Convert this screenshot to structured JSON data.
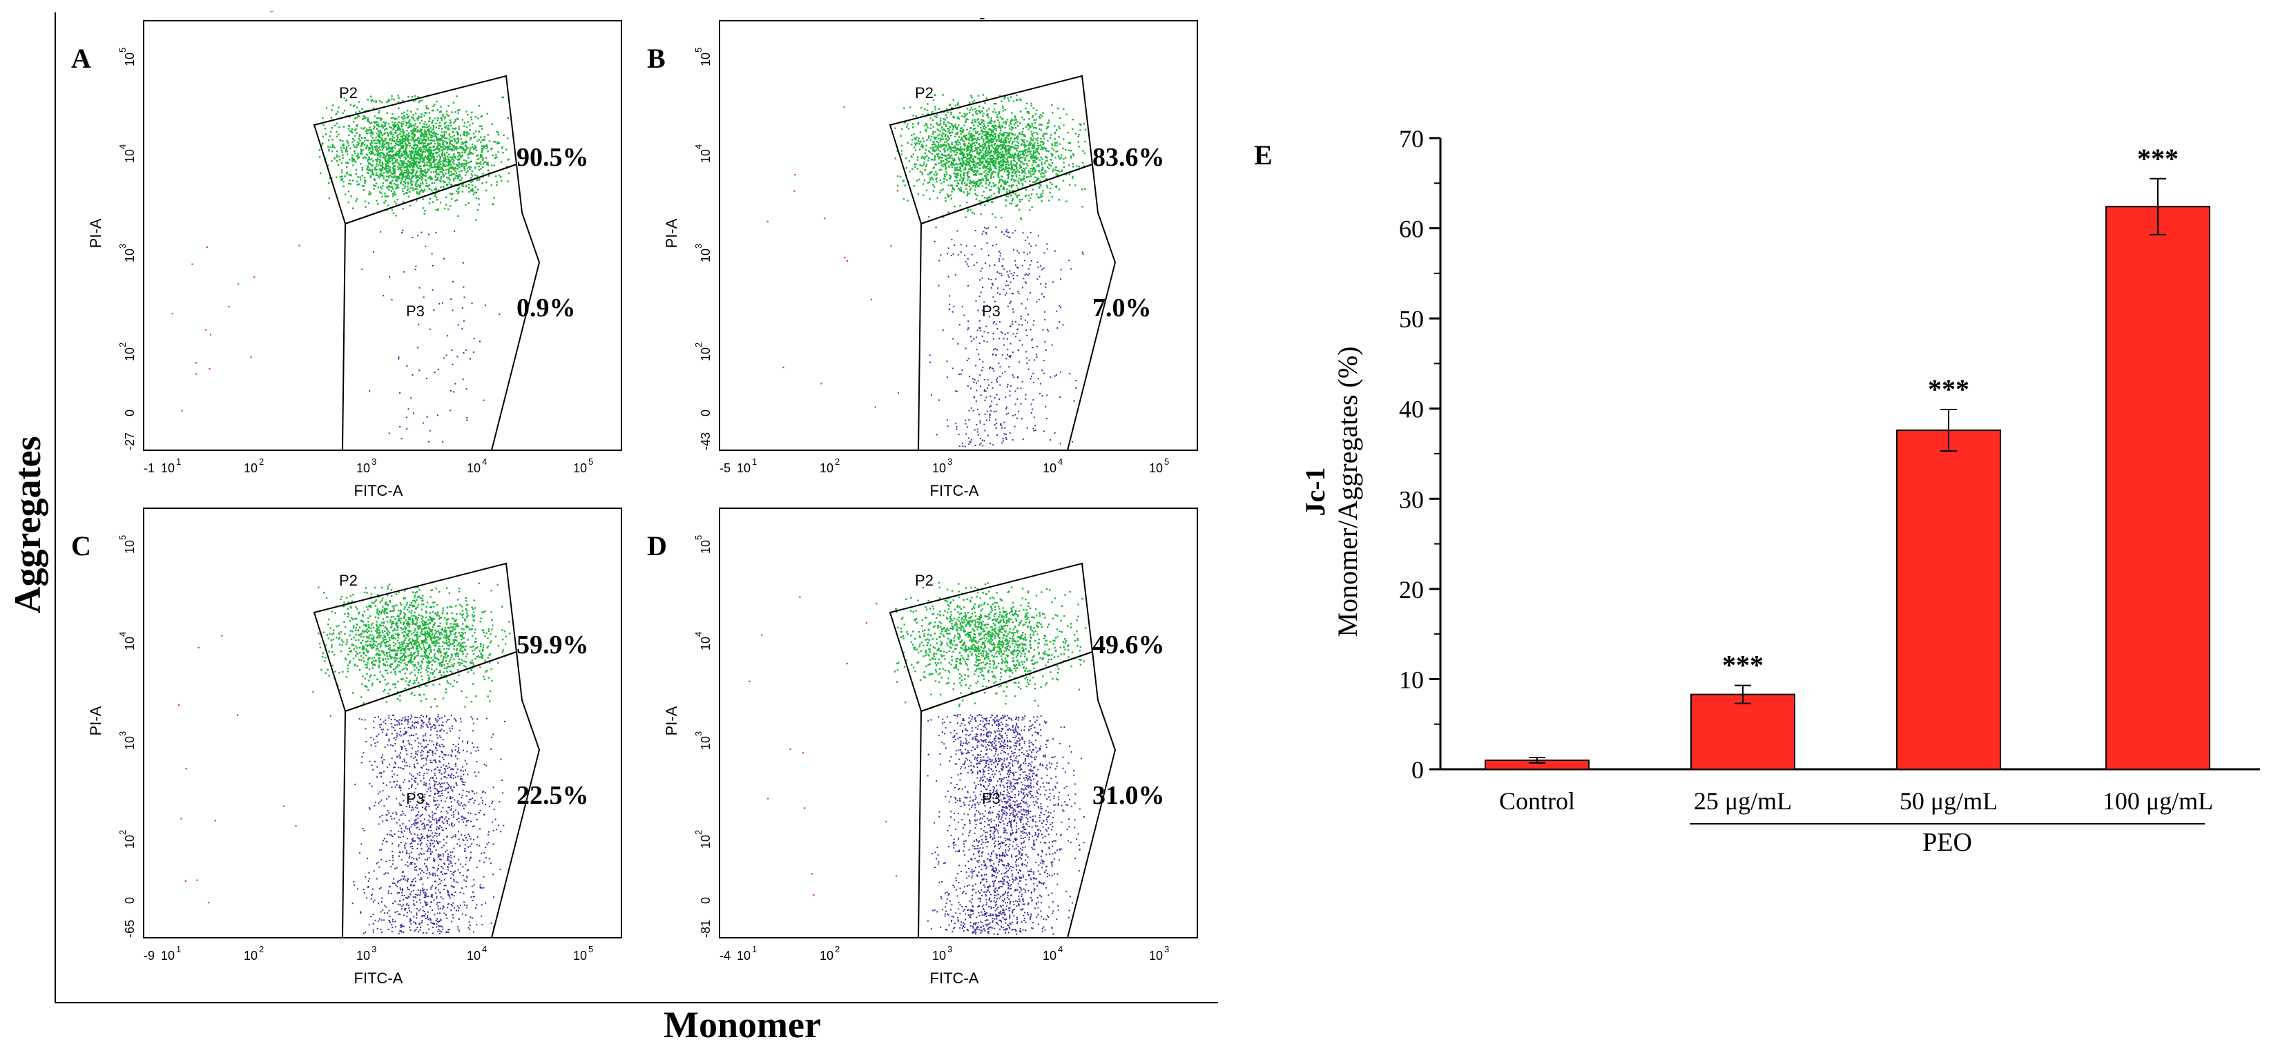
{
  "figure": {
    "global_ylabel": "Aggregates",
    "global_xlabel": "Monomer",
    "header_fragment": "-",
    "header_mark": "-"
  },
  "flow_panels": [
    {
      "letter": "A",
      "ylabel": "PI-A",
      "xlabel": "FITC-A",
      "xticks": [
        "-1",
        "10",
        "10",
        "10",
        "10",
        "10"
      ],
      "xtick_exps": [
        "",
        "1",
        "2",
        "3",
        "4",
        "5"
      ],
      "yticks": [
        "-27",
        "0",
        "10",
        "10",
        "10",
        "10"
      ],
      "ytick_exps": [
        "",
        "",
        "2",
        "3",
        "4",
        "5"
      ],
      "gate_upper": "P2",
      "gate_lower": "P3",
      "pct_upper": "90.5%",
      "pct_lower": "0.9%",
      "p2_fraction": 0.905,
      "p3_fraction": 0.009
    },
    {
      "letter": "B",
      "ylabel": "PI-A",
      "xlabel": "FITC-A",
      "xticks": [
        "-5",
        "10",
        "10",
        "10",
        "10",
        "10"
      ],
      "xtick_exps": [
        "",
        "1",
        "2",
        "3",
        "4",
        "5"
      ],
      "yticks": [
        "-43",
        "0",
        "10",
        "10",
        "10",
        "10"
      ],
      "ytick_exps": [
        "",
        "",
        "2",
        "3",
        "4",
        "5"
      ],
      "gate_upper": "P2",
      "gate_lower": "P3",
      "pct_upper": "83.6%",
      "pct_lower": "7.0%",
      "p2_fraction": 0.836,
      "p3_fraction": 0.07
    },
    {
      "letter": "C",
      "ylabel": "PI-A",
      "xlabel": "FITC-A",
      "xticks": [
        "-9",
        "10",
        "10",
        "10",
        "10",
        "10"
      ],
      "xtick_exps": [
        "",
        "1",
        "2",
        "3",
        "4",
        "5"
      ],
      "yticks": [
        "-65",
        "0",
        "10",
        "10",
        "10",
        "10"
      ],
      "ytick_exps": [
        "",
        "",
        "2",
        "3",
        "4",
        "5"
      ],
      "gate_upper": "P2",
      "gate_lower": "P3",
      "pct_upper": "59.9%",
      "pct_lower": "22.5%",
      "p2_fraction": 0.599,
      "p3_fraction": 0.225
    },
    {
      "letter": "D",
      "ylabel": "PI-A",
      "xlabel": "FITC-A",
      "xticks": [
        "-4",
        "10",
        "10",
        "10",
        "10",
        "10"
      ],
      "xtick_exps": [
        "",
        "1",
        "2",
        "3",
        "4",
        "3"
      ],
      "yticks": [
        "-81",
        "0",
        "10",
        "10",
        "10",
        "10"
      ],
      "ytick_exps": [
        "",
        "",
        "2",
        "3",
        "4",
        "5"
      ],
      "gate_upper": "P2",
      "gate_lower": "P3",
      "pct_upper": "49.6%",
      "pct_lower": "31.0%",
      "p2_fraction": 0.496,
      "p3_fraction": 0.31
    }
  ],
  "chart_data": {
    "type": "bar",
    "panel_letter": "E",
    "categories": [
      "Control",
      "25 μg/mL",
      "50 μg/mL",
      "100 μg/mL"
    ],
    "values": [
      1.0,
      8.3,
      37.6,
      62.4
    ],
    "errors": [
      0.3,
      1.0,
      2.3,
      3.1
    ],
    "significance": [
      "",
      "***",
      "***",
      "***"
    ],
    "ylabel_line1": "Jc-1",
    "ylabel_line2": "Monomer/Aggregates (%)",
    "group_label": "PEO",
    "ylim": [
      0,
      70
    ],
    "yticks": [
      0,
      10,
      20,
      30,
      40,
      50,
      60,
      70
    ],
    "bar_color": "#ff2a22",
    "edge_color": "#000000"
  },
  "colors": {
    "p2_dots": "#1db33b",
    "p3_dots": "#3d2a9e",
    "outlier_dots": "#e83a2a"
  }
}
